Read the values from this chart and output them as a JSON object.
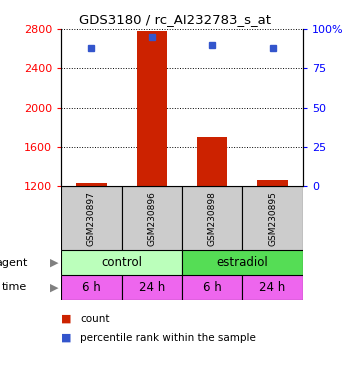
{
  "title": "GDS3180 / rc_AI232783_s_at",
  "samples": [
    "GSM230897",
    "GSM230896",
    "GSM230898",
    "GSM230895"
  ],
  "bar_values": [
    1230,
    2780,
    1700,
    1260
  ],
  "percentile_values": [
    88,
    95,
    90,
    88
  ],
  "ylim_left": [
    1200,
    2800
  ],
  "ylim_right": [
    0,
    100
  ],
  "yticks_left": [
    1200,
    1600,
    2000,
    2400,
    2800
  ],
  "yticks_right": [
    0,
    25,
    50,
    75,
    100
  ],
  "bar_color": "#cc2200",
  "dot_color": "#3355cc",
  "agent_colors": [
    "#bbffbb",
    "#55dd55"
  ],
  "time_color": "#ee66ee",
  "time_labels": [
    "6 h",
    "24 h",
    "6 h",
    "24 h"
  ],
  "agent_row_label": "agent",
  "time_row_label": "time",
  "legend_count_label": "count",
  "legend_pct_label": "percentile rank within the sample",
  "bar_width": 0.5,
  "sample_box_color": "#cccccc"
}
